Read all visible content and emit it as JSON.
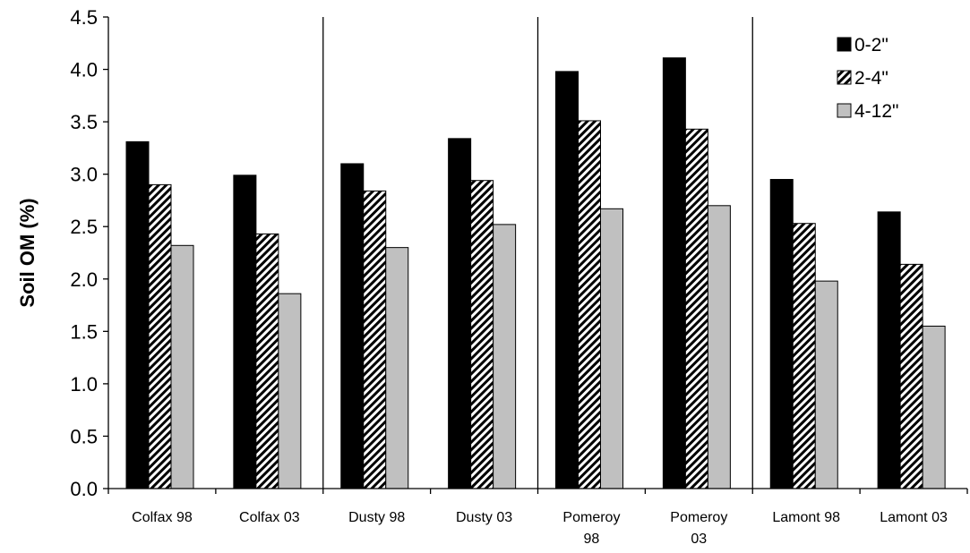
{
  "chart_data": {
    "type": "bar",
    "ylabel": "Soil OM (%)",
    "xlabel": "",
    "ylim": [
      0,
      4.5
    ],
    "yticks": [
      "0.0",
      "0.5",
      "1.0",
      "1.5",
      "2.0",
      "2.5",
      "3.0",
      "3.5",
      "4.0",
      "4.5"
    ],
    "categories": [
      [
        "Colfax 98"
      ],
      [
        "Colfax 03"
      ],
      [
        "Dusty 98"
      ],
      [
        "Dusty 03"
      ],
      [
        "Pomeroy",
        "98"
      ],
      [
        "Pomeroy",
        "03"
      ],
      [
        "Lamont 98"
      ],
      [
        "Lamont 03"
      ]
    ],
    "series": [
      {
        "name": "0-2\"",
        "values": [
          3.31,
          2.99,
          3.1,
          3.34,
          3.98,
          4.11,
          2.95,
          2.64
        ],
        "pattern": "solid",
        "color": "#000000"
      },
      {
        "name": "2-4\"",
        "values": [
          2.9,
          2.43,
          2.84,
          2.94,
          3.51,
          3.43,
          2.53,
          2.14
        ],
        "pattern": "diagonal-stripes",
        "color": "#000000"
      },
      {
        "name": "4-12\"",
        "values": [
          2.32,
          1.86,
          2.3,
          2.52,
          2.67,
          2.7,
          1.98,
          1.55
        ],
        "pattern": "solid",
        "color": "#c0c0c0"
      }
    ],
    "group_dividers_after": [
      2,
      4,
      6
    ],
    "legend_position": "top-right",
    "grid": false
  }
}
